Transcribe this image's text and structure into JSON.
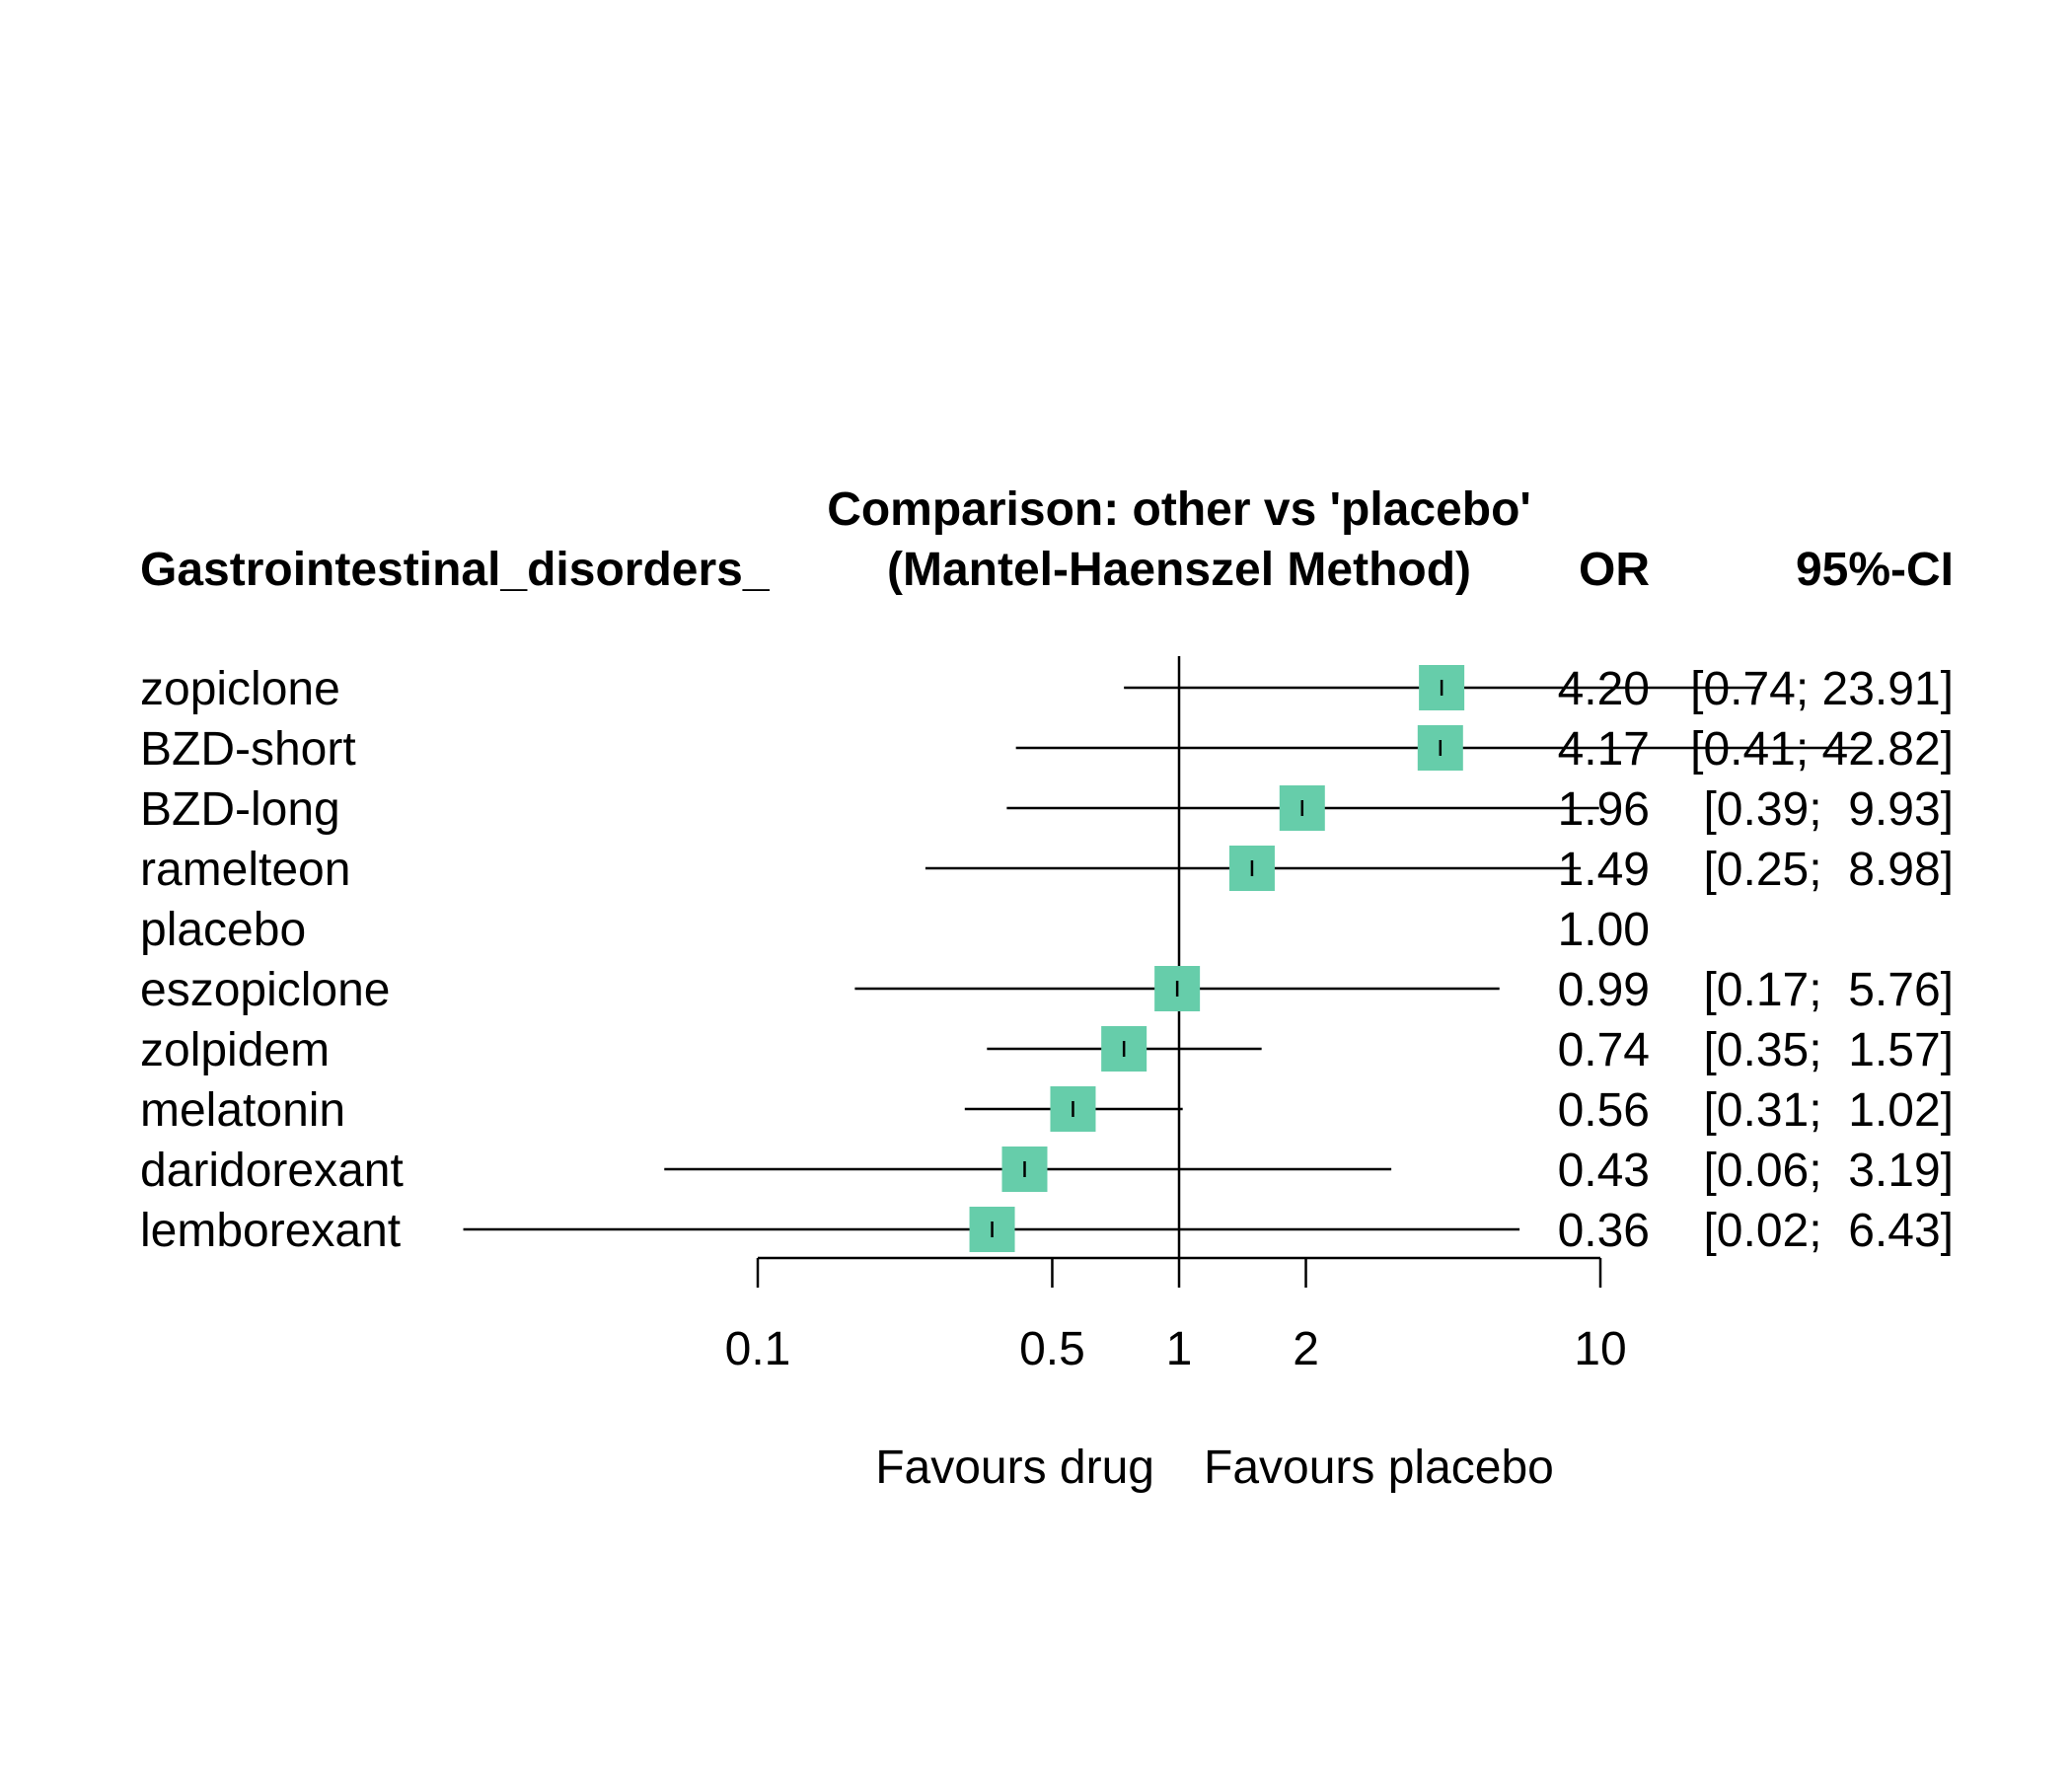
{
  "chart_data": {
    "type": "forest",
    "title": "Comparison: other vs 'placebo'",
    "subtitle": "(Mantel-Haenszel Method)",
    "outcome_label": "Gastrointestinal_disorders_",
    "col_or_header": "OR",
    "col_ci_header": "95%-CI",
    "x_scale": "log",
    "xlim": [
      0.1,
      10
    ],
    "reference_line": 1,
    "ticks": [
      {
        "value": 0.1,
        "label": "0.1"
      },
      {
        "value": 0.5,
        "label": "0.5"
      },
      {
        "value": 1,
        "label": "1"
      },
      {
        "value": 2,
        "label": "2"
      },
      {
        "value": 10,
        "label": "10"
      }
    ],
    "left_favours": "Favours drug",
    "right_favours": "Favours placebo",
    "marker_color": "#66CDAA",
    "rows": [
      {
        "name": "zopiclone",
        "or": 4.2,
        "lo": 0.74,
        "hi": 23.91,
        "or_text": "4.20",
        "ci_text": "[0.74; 23.91]"
      },
      {
        "name": "BZD-short",
        "or": 4.17,
        "lo": 0.41,
        "hi": 42.82,
        "or_text": "4.17",
        "ci_text": "[0.41; 42.82]"
      },
      {
        "name": "BZD-long",
        "or": 1.96,
        "lo": 0.39,
        "hi": 9.93,
        "or_text": "1.96",
        "ci_text": "[0.39;  9.93]"
      },
      {
        "name": "ramelteon",
        "or": 1.49,
        "lo": 0.25,
        "hi": 8.98,
        "or_text": "1.49",
        "ci_text": "[0.25;  8.98]"
      },
      {
        "name": "placebo",
        "or": 1.0,
        "lo": null,
        "hi": null,
        "or_text": "1.00",
        "ci_text": ""
      },
      {
        "name": "eszopiclone",
        "or": 0.99,
        "lo": 0.17,
        "hi": 5.76,
        "or_text": "0.99",
        "ci_text": "[0.17;  5.76]"
      },
      {
        "name": "zolpidem",
        "or": 0.74,
        "lo": 0.35,
        "hi": 1.57,
        "or_text": "0.74",
        "ci_text": "[0.35;  1.57]"
      },
      {
        "name": "melatonin",
        "or": 0.56,
        "lo": 0.31,
        "hi": 1.02,
        "or_text": "0.56",
        "ci_text": "[0.31;  1.02]"
      },
      {
        "name": "daridorexant",
        "or": 0.43,
        "lo": 0.06,
        "hi": 3.19,
        "or_text": "0.43",
        "ci_text": "[0.06;  3.19]"
      },
      {
        "name": "lemborexant",
        "or": 0.36,
        "lo": 0.02,
        "hi": 6.43,
        "or_text": "0.36",
        "ci_text": "[0.02;  6.43]"
      }
    ]
  }
}
